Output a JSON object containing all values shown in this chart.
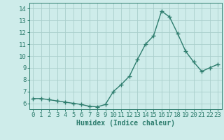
{
  "x": [
    0,
    1,
    2,
    3,
    4,
    5,
    6,
    7,
    8,
    9,
    10,
    11,
    12,
    13,
    14,
    15,
    16,
    17,
    18,
    19,
    20,
    21,
    22,
    23
  ],
  "y": [
    6.4,
    6.4,
    6.3,
    6.2,
    6.1,
    6.0,
    5.9,
    5.75,
    5.7,
    5.9,
    7.0,
    7.6,
    8.3,
    9.7,
    11.0,
    11.7,
    13.8,
    13.3,
    11.9,
    10.4,
    9.5,
    8.7,
    9.0,
    9.3
  ],
  "line_color": "#2e7d6e",
  "marker": "+",
  "markersize": 4,
  "linewidth": 1.0,
  "background_color": "#ceecea",
  "grid_color": "#aacfcc",
  "axis_color": "#2e7d6e",
  "tick_color": "#2e7d6e",
  "xlabel": "Humidex (Indice chaleur)",
  "xlabel_fontsize": 7,
  "xlabel_color": "#2e7d6e",
  "ylim": [
    5.5,
    14.5
  ],
  "xlim": [
    -0.5,
    23.5
  ],
  "yticks": [
    6,
    7,
    8,
    9,
    10,
    11,
    12,
    13,
    14
  ],
  "xticks": [
    0,
    1,
    2,
    3,
    4,
    5,
    6,
    7,
    8,
    9,
    10,
    11,
    12,
    13,
    14,
    15,
    16,
    17,
    18,
    19,
    20,
    21,
    22,
    23
  ],
  "tick_fontsize": 6.5
}
